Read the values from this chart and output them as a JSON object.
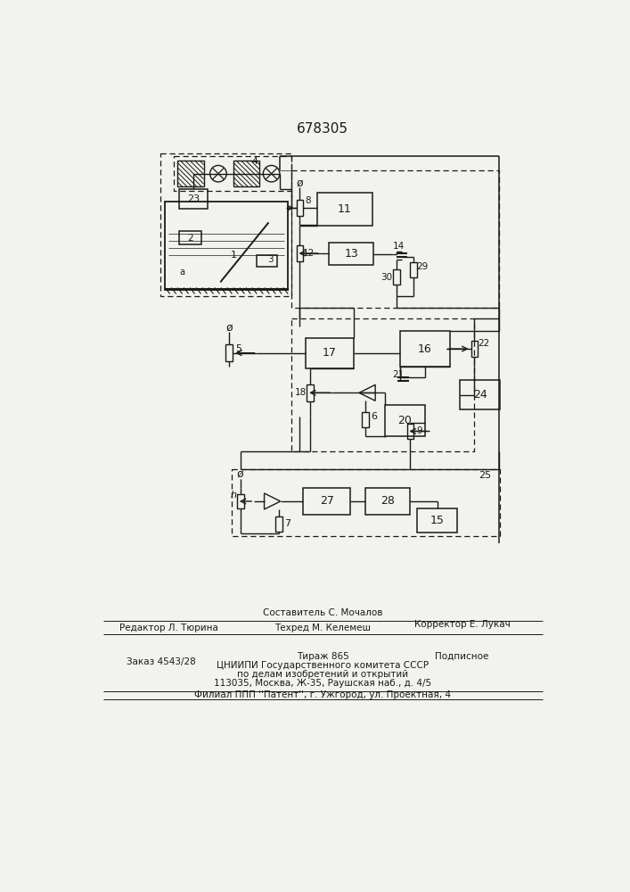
{
  "title": "678305",
  "bg_color": "#f2f2ee",
  "lc": "#1a1a1a",
  "footer": {
    "line1_left": "Редактор Л. Тюрина",
    "line1_center": "Составитель С. Мочалов",
    "line1_right": "Корректор Е. Лукач",
    "line2_center": "Техред М. Келемеш",
    "line3_left": "Заказ 4543/28",
    "line3_center": "Тираж 865",
    "line3_right": "Подписное",
    "line4_center": "ЦНИИПИ Государственного комитета СССР",
    "line5_center": "по делам изобретений и открытий",
    "line6_center": "113035, Москва, Ж-35, Раушская наб., д. 4/5",
    "line7_center": "Филиал ППП ''Патент'', г. Ужгород, ул. Проектная, 4"
  }
}
